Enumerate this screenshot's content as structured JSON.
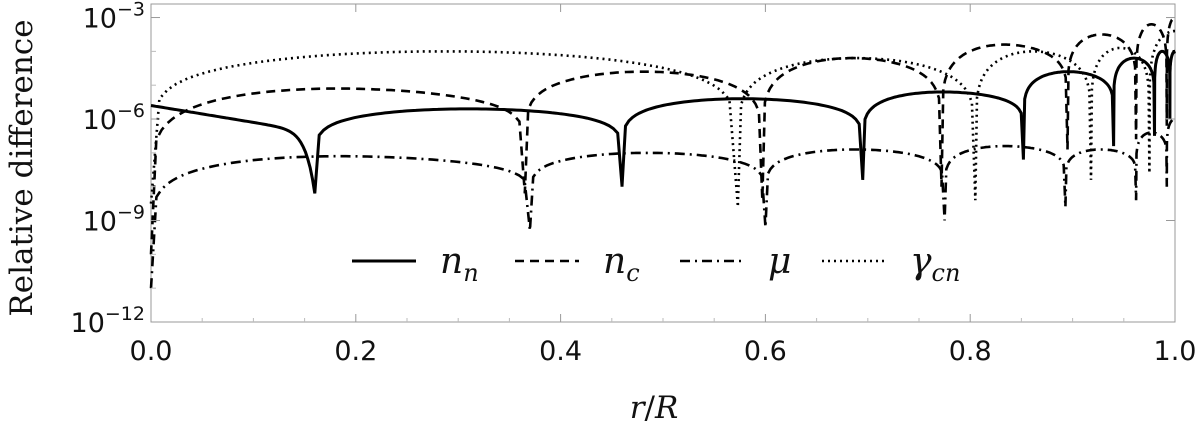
{
  "chart_data": {
    "type": "line",
    "xlabel": "r/R",
    "ylabel": "Relative difference",
    "xlim": [
      0,
      1
    ],
    "ylim_log10": [
      -12,
      -2.6
    ],
    "y_scale": "log",
    "grid": false,
    "legend_placement": "bottom-center",
    "x_ticks": [
      {
        "value": 0.0,
        "label": "0.0"
      },
      {
        "value": 0.2,
        "label": "0.2"
      },
      {
        "value": 0.4,
        "label": "0.4"
      },
      {
        "value": 0.6,
        "label": "0.6"
      },
      {
        "value": 0.8,
        "label": "0.8"
      },
      {
        "value": 1.0,
        "label": "1.0"
      }
    ],
    "y_ticks": [
      {
        "exp": -3,
        "base": "10",
        "sup": "−3"
      },
      {
        "exp": -6,
        "base": "10",
        "sup": "−6"
      },
      {
        "exp": -9,
        "base": "10",
        "sup": "−9"
      },
      {
        "exp": -12,
        "base": "10",
        "sup": "−12"
      }
    ],
    "series": [
      {
        "name": "n_n",
        "legend_main": "n",
        "legend_sub": "n",
        "style": "solid",
        "color": "#000000",
        "start": [
          0.0,
          -5.6
        ],
        "nodes": [
          0.16,
          0.46,
          0.695,
          0.852,
          0.94,
          0.98,
          0.995
        ],
        "node_depth": [
          -8.2,
          -8.0,
          -7.8,
          -7.2,
          -6.8,
          -6.5,
          -6.0
        ],
        "arch_peaks": [
          -6.4,
          -5.7,
          -5.4,
          -5.2,
          -4.6,
          -4.2,
          -4.0,
          -4.0
        ]
      },
      {
        "name": "n_c",
        "legend_main": "n",
        "legend_sub": "c",
        "style": "dashed",
        "color": "#000000",
        "start": [
          0.0,
          -10.0
        ],
        "nodes": [
          0.365,
          0.597,
          0.772,
          0.895,
          0.962,
          0.992
        ],
        "node_depth": [
          -8.2,
          -8.4,
          -8.0,
          -6.9,
          -6.6,
          -6.2
        ],
        "arch_peaks": [
          -5.1,
          -4.6,
          -4.2,
          -3.8,
          -3.5,
          -3.2,
          -3.0
        ]
      },
      {
        "name": "mu",
        "legend_main": "μ",
        "legend_sub": "",
        "style": "dashdot",
        "color": "#000000",
        "start": [
          0.0,
          -11.0
        ],
        "nodes": [
          0.37,
          0.6,
          0.775,
          0.893,
          0.962,
          0.992
        ],
        "node_depth": [
          -9.3,
          -9.2,
          -9.0,
          -8.6,
          -8.4,
          -8.0
        ],
        "arch_peaks": [
          -7.1,
          -7.0,
          -6.9,
          -6.8,
          -6.9,
          -6.4,
          -6.0
        ]
      },
      {
        "name": "gamma_cn",
        "legend_main": "γ",
        "legend_sub": "cn",
        "style": "dotted",
        "color": "#000000",
        "start": [
          0.0,
          -8.5
        ],
        "nodes": [
          0.573,
          0.805,
          0.918,
          0.975
        ],
        "node_depth": [
          -8.6,
          -8.4,
          -7.8,
          -7.6
        ],
        "arch_peaks": [
          -4.0,
          -4.2,
          -4.0,
          -3.9,
          -3.4
        ]
      }
    ]
  }
}
